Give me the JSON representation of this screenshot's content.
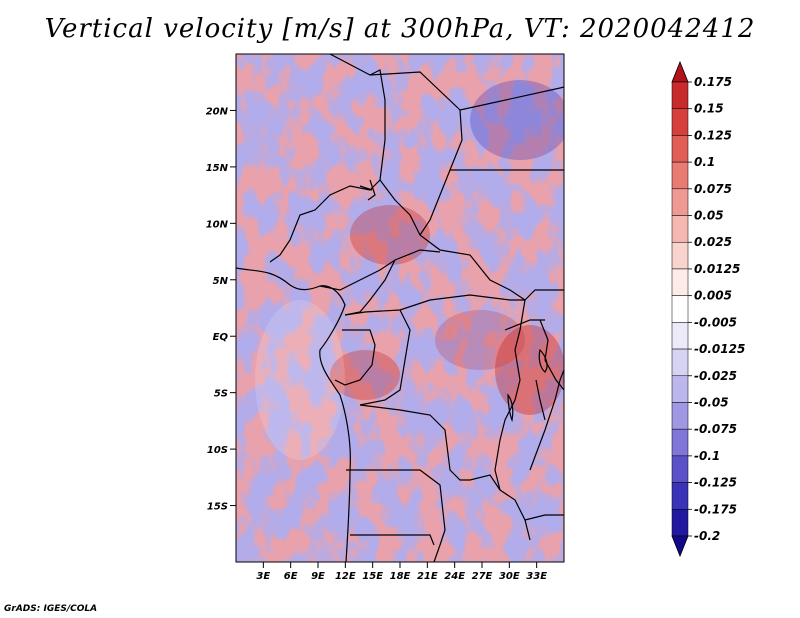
{
  "title": "Vertical velocity [m/s] at 300hPa, VT: 2020042412",
  "credit": "GrADS: IGES/COLA",
  "map": {
    "lon_range": [
      0,
      36
    ],
    "lat_range": [
      -20,
      25
    ],
    "lat_ticks": [
      {
        "lat": 20,
        "label": "20N"
      },
      {
        "lat": 15,
        "label": "15N"
      },
      {
        "lat": 10,
        "label": "10N"
      },
      {
        "lat": 5,
        "label": "5N"
      },
      {
        "lat": 0,
        "label": "EQ"
      },
      {
        "lat": -5,
        "label": "5S"
      },
      {
        "lat": -10,
        "label": "10S"
      },
      {
        "lat": -15,
        "label": "15S"
      }
    ],
    "lon_ticks": [
      {
        "lon": 3,
        "label": "3E"
      },
      {
        "lon": 6,
        "label": "6E"
      },
      {
        "lon": 9,
        "label": "9E"
      },
      {
        "lon": 12,
        "label": "12E"
      },
      {
        "lon": 15,
        "label": "15E"
      },
      {
        "lon": 18,
        "label": "18E"
      },
      {
        "lon": 21,
        "label": "21E"
      },
      {
        "lon": 24,
        "label": "24E"
      },
      {
        "lon": 27,
        "label": "27E"
      },
      {
        "lon": 30,
        "label": "30E"
      },
      {
        "lon": 33,
        "label": "33E"
      }
    ]
  },
  "colorbar": {
    "labels": [
      "0.175",
      "0.15",
      "0.125",
      "0.1",
      "0.075",
      "0.05",
      "0.025",
      "0.0125",
      "0.005",
      "-0.005",
      "-0.0125",
      "-0.025",
      "-0.05",
      "-0.075",
      "-0.1",
      "-0.125",
      "-0.175",
      "-0.2"
    ],
    "colors": [
      "#b3121a",
      "#c72b2b",
      "#d53f3c",
      "#e05e55",
      "#e87c73",
      "#ee9a92",
      "#f4b8b1",
      "#f9d4cf",
      "#fdebe8",
      "#ffffff",
      "#eceaf8",
      "#d7d4f3",
      "#bbb6ec",
      "#9f98e3",
      "#7f76d8",
      "#5b52c9",
      "#3a32b7",
      "#2218a0",
      "#14088a"
    ]
  }
}
